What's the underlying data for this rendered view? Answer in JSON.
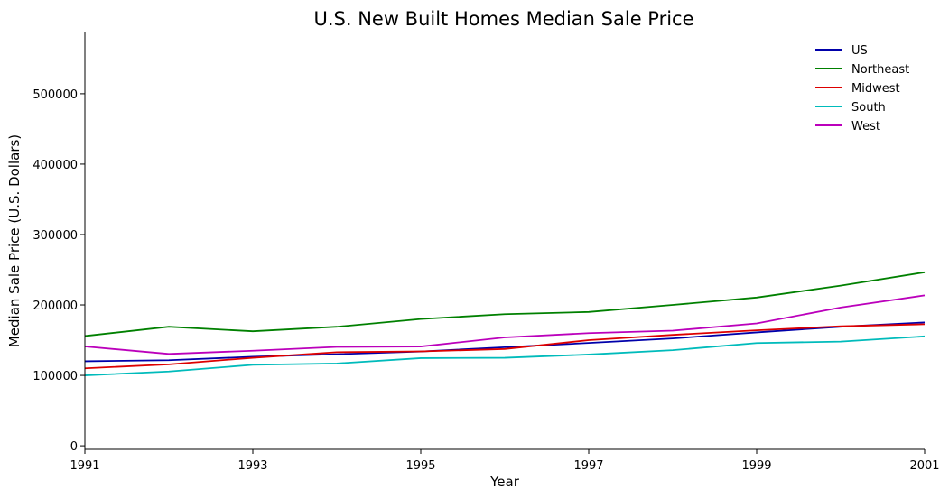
{
  "chart_data": {
    "type": "line",
    "title": "U.S. New Built Homes Median Sale Price",
    "xlabel": "Year",
    "ylabel": "Median Sale Price (U.S. Dollars)",
    "x": [
      1991,
      1992,
      1993,
      1994,
      1995,
      1996,
      1997,
      1998,
      1999,
      2000,
      2001
    ],
    "xlim": [
      1991,
      2001
    ],
    "ylim": [
      -5000,
      587000
    ],
    "x_ticks": [
      1991,
      1993,
      1995,
      1997,
      1999,
      2001
    ],
    "y_ticks": [
      0,
      100000,
      200000,
      300000,
      400000,
      500000
    ],
    "grid": false,
    "legend_position": "top-right",
    "series": [
      {
        "name": "US",
        "color": "#0000aa",
        "values": [
          120000,
          121500,
          126500,
          130000,
          133900,
          140000,
          146000,
          152500,
          161000,
          169000,
          175200
        ]
      },
      {
        "name": "Northeast",
        "color": "#008000",
        "values": [
          155900,
          169000,
          162600,
          169000,
          180000,
          186900,
          190000,
          200000,
          210500,
          227400,
          246400
        ]
      },
      {
        "name": "Midwest",
        "color": "#dd0000",
        "values": [
          110000,
          115600,
          125000,
          132900,
          134000,
          137500,
          150000,
          157500,
          164000,
          169700,
          172600
        ]
      },
      {
        "name": "South",
        "color": "#00bbbb",
        "values": [
          100000,
          105500,
          115000,
          116900,
          124500,
          125000,
          129600,
          135800,
          145900,
          148000,
          155400
        ]
      },
      {
        "name": "West",
        "color": "#bb00bb",
        "values": [
          141100,
          130400,
          135000,
          140400,
          141000,
          153900,
          160000,
          163500,
          173700,
          196400,
          213600
        ]
      }
    ]
  }
}
